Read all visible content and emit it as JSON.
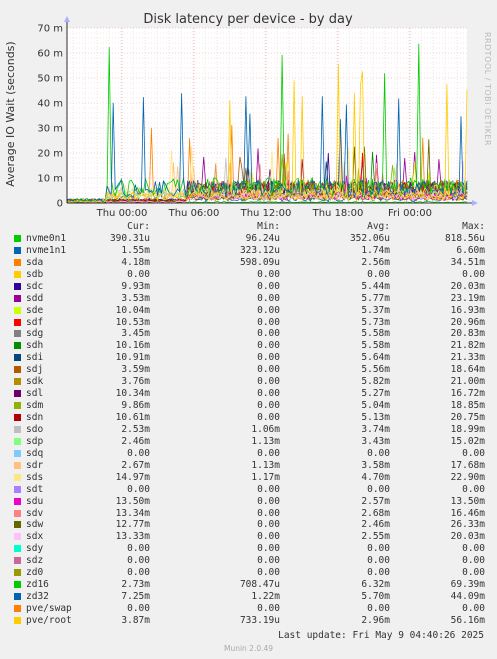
{
  "chart_data": {
    "type": "line",
    "title": "Disk latency per device - by day",
    "ylabel": "Average IO Wait (seconds)",
    "side_text": "RRDTOOL / TOBI OETIKER",
    "x_ticks": [
      "Thu 00:00",
      "Thu 06:00",
      "Thu 12:00",
      "Thu 18:00",
      "Fri 00:00"
    ],
    "y_ticks": [
      "0",
      "10 m",
      "20 m",
      "30 m",
      "40 m",
      "50 m",
      "60 m",
      "70 m"
    ],
    "ylim": [
      0,
      70
    ],
    "y_unit": "m",
    "grid": true,
    "legend_header": {
      "cur": "Cur:",
      "min": "Min:",
      "avg": "Avg:",
      "max": "Max:"
    },
    "series": [
      {
        "name": "nvme0n1",
        "color": "#00cc00",
        "cur": "390.31u",
        "min": "96.24u",
        "avg": "352.06u",
        "max": "818.56u"
      },
      {
        "name": "nvme1n1",
        "color": "#0066b3",
        "cur": "1.55m",
        "min": "323.12u",
        "avg": "1.74m",
        "max": "6.60m"
      },
      {
        "name": "sda",
        "color": "#ff8000",
        "cur": "4.18m",
        "min": "598.09u",
        "avg": "2.56m",
        "max": "34.51m"
      },
      {
        "name": "sdb",
        "color": "#ffcc00",
        "cur": "0.00",
        "min": "0.00",
        "avg": "0.00",
        "max": "0.00"
      },
      {
        "name": "sdc",
        "color": "#330099",
        "cur": "9.93m",
        "min": "0.00",
        "avg": "5.44m",
        "max": "20.03m"
      },
      {
        "name": "sdd",
        "color": "#990099",
        "cur": "3.53m",
        "min": "0.00",
        "avg": "5.77m",
        "max": "23.19m"
      },
      {
        "name": "sde",
        "color": "#ccff00",
        "cur": "10.04m",
        "min": "0.00",
        "avg": "5.37m",
        "max": "16.93m"
      },
      {
        "name": "sdf",
        "color": "#ff0000",
        "cur": "10.53m",
        "min": "0.00",
        "avg": "5.73m",
        "max": "20.96m"
      },
      {
        "name": "sdg",
        "color": "#808080",
        "cur": "3.45m",
        "min": "0.00",
        "avg": "5.58m",
        "max": "20.83m"
      },
      {
        "name": "sdh",
        "color": "#008f00",
        "cur": "10.16m",
        "min": "0.00",
        "avg": "5.58m",
        "max": "21.82m"
      },
      {
        "name": "sdi",
        "color": "#00487d",
        "cur": "10.91m",
        "min": "0.00",
        "avg": "5.64m",
        "max": "21.33m"
      },
      {
        "name": "sdj",
        "color": "#b35a00",
        "cur": "3.59m",
        "min": "0.00",
        "avg": "5.56m",
        "max": "18.64m"
      },
      {
        "name": "sdk",
        "color": "#b38f00",
        "cur": "3.76m",
        "min": "0.00",
        "avg": "5.82m",
        "max": "21.00m"
      },
      {
        "name": "sdl",
        "color": "#6b006b",
        "cur": "10.34m",
        "min": "0.00",
        "avg": "5.27m",
        "max": "16.72m"
      },
      {
        "name": "sdm",
        "color": "#8fb300",
        "cur": "9.86m",
        "min": "0.00",
        "avg": "5.04m",
        "max": "18.85m"
      },
      {
        "name": "sdn",
        "color": "#b30000",
        "cur": "10.61m",
        "min": "0.00",
        "avg": "5.13m",
        "max": "20.75m"
      },
      {
        "name": "sdo",
        "color": "#bebebe",
        "cur": "2.53m",
        "min": "1.06m",
        "avg": "3.74m",
        "max": "18.99m"
      },
      {
        "name": "sdp",
        "color": "#80ff80",
        "cur": "2.46m",
        "min": "1.13m",
        "avg": "3.43m",
        "max": "15.02m"
      },
      {
        "name": "sdq",
        "color": "#80c9ff",
        "cur": "0.00",
        "min": "0.00",
        "avg": "0.00",
        "max": "0.00"
      },
      {
        "name": "sdr",
        "color": "#ffc080",
        "cur": "2.67m",
        "min": "1.13m",
        "avg": "3.58m",
        "max": "17.68m"
      },
      {
        "name": "sds",
        "color": "#ffe680",
        "cur": "14.97m",
        "min": "1.17m",
        "avg": "4.70m",
        "max": "22.90m"
      },
      {
        "name": "sdt",
        "color": "#aa80ff",
        "cur": "0.00",
        "min": "0.00",
        "avg": "0.00",
        "max": "0.00"
      },
      {
        "name": "sdu",
        "color": "#ee00cc",
        "cur": "13.50m",
        "min": "0.00",
        "avg": "2.57m",
        "max": "13.50m"
      },
      {
        "name": "sdv",
        "color": "#ff8080",
        "cur": "13.34m",
        "min": "0.00",
        "avg": "2.68m",
        "max": "16.46m"
      },
      {
        "name": "sdw",
        "color": "#666600",
        "cur": "12.77m",
        "min": "0.00",
        "avg": "2.46m",
        "max": "26.33m"
      },
      {
        "name": "sdx",
        "color": "#ffbfff",
        "cur": "13.33m",
        "min": "0.00",
        "avg": "2.55m",
        "max": "20.03m"
      },
      {
        "name": "sdy",
        "color": "#00ffcc",
        "cur": "0.00",
        "min": "0.00",
        "avg": "0.00",
        "max": "0.00"
      },
      {
        "name": "sdz",
        "color": "#cc6699",
        "cur": "0.00",
        "min": "0.00",
        "avg": "0.00",
        "max": "0.00"
      },
      {
        "name": "zd0",
        "color": "#999900",
        "cur": "0.00",
        "min": "0.00",
        "avg": "0.00",
        "max": "0.00"
      },
      {
        "name": "zd16",
        "color": "#00cc00",
        "cur": "2.73m",
        "min": "708.47u",
        "avg": "6.32m",
        "max": "69.39m"
      },
      {
        "name": "zd32",
        "color": "#0066b3",
        "cur": "7.25m",
        "min": "1.22m",
        "avg": "5.70m",
        "max": "44.09m"
      },
      {
        "name": "pve/swap",
        "color": "#ff8000",
        "cur": "0.00",
        "min": "0.00",
        "avg": "0.00",
        "max": "0.00"
      },
      {
        "name": "pve/root",
        "color": "#ffcc00",
        "cur": "3.87m",
        "min": "733.19u",
        "avg": "2.96m",
        "max": "56.16m"
      }
    ]
  },
  "footer": {
    "last_update": "Last update: Fri May  9 04:40:26 2025",
    "munin_version": "Munin 2.0.49"
  }
}
